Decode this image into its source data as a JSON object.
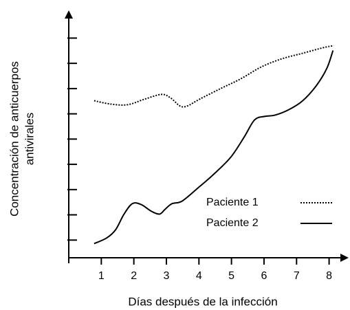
{
  "chart_data": {
    "type": "line",
    "xlabel": "Días después de la infección",
    "ylabel": [
      "Concentración de anticuerpos",
      "antivirales"
    ],
    "xlim": [
      0,
      8.6
    ],
    "xticks": [
      1,
      2,
      3,
      4,
      5,
      6,
      7,
      8
    ],
    "ylim": [
      0.3,
      10.1
    ],
    "yticks": [
      1,
      2,
      3,
      4,
      5,
      6,
      7,
      8,
      9
    ],
    "legend": "lower right",
    "series": [
      {
        "name": "Paciente 1",
        "color": "#000000",
        "style": "dotted",
        "x": [
          0.78,
          1.27,
          1.8,
          2.33,
          2.85,
          3.13,
          3.42,
          3.64,
          4.02,
          4.65,
          5.29,
          5.92,
          6.55,
          7.19,
          7.82,
          8.14
        ],
        "values": [
          6.52,
          6.39,
          6.36,
          6.58,
          6.77,
          6.63,
          6.31,
          6.31,
          6.58,
          6.99,
          7.39,
          7.86,
          8.18,
          8.4,
          8.62,
          8.7
        ]
      },
      {
        "name": "Paciente 2",
        "color": "#000000",
        "style": "solid",
        "x": [
          0.78,
          1.16,
          1.44,
          1.69,
          1.95,
          2.22,
          2.54,
          2.79,
          2.96,
          3.17,
          3.49,
          4.02,
          4.44,
          4.97,
          5.39,
          5.71,
          6.03,
          6.34,
          6.77,
          7.19,
          7.61,
          7.93,
          8.12
        ],
        "values": [
          0.86,
          1.08,
          1.41,
          2.01,
          2.44,
          2.41,
          2.14,
          2.03,
          2.22,
          2.44,
          2.55,
          3.12,
          3.59,
          4.27,
          5.08,
          5.76,
          5.9,
          5.95,
          6.17,
          6.52,
          7.12,
          7.8,
          8.51
        ]
      }
    ]
  }
}
